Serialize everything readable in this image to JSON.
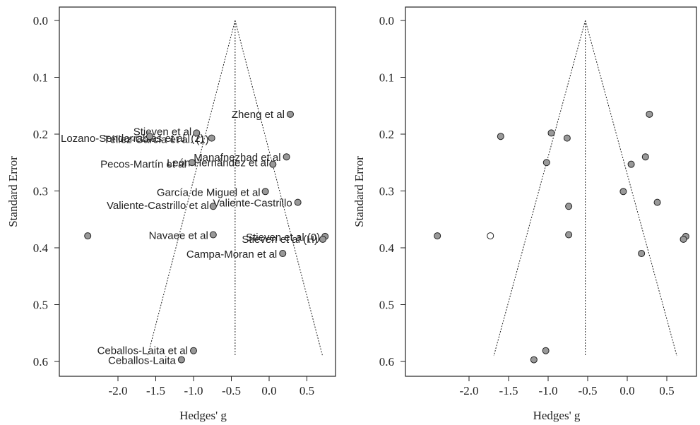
{
  "chart_data": [
    {
      "type": "scatter",
      "title": "",
      "xlabel": "Hedges' g",
      "ylabel": "Standard Error",
      "xlim": [
        -2.42,
        0.78
      ],
      "ylim": [
        0.0,
        0.6
      ],
      "y_reversed": true,
      "xticks": [
        "-2.0",
        "-1.5",
        "-1.0",
        "-0.5",
        "0.0",
        "0.5"
      ],
      "xtick_values": [
        -2.0,
        -1.5,
        -1.0,
        -0.5,
        0.0,
        0.5
      ],
      "yticks": [
        "0.0",
        "0.1",
        "0.2",
        "0.3",
        "0.4",
        "0.5",
        "0.6"
      ],
      "ytick_values": [
        0.0,
        0.1,
        0.2,
        0.3,
        0.4,
        0.5,
        0.6
      ],
      "summary_effect": -0.45,
      "funnel_se_max": 0.59,
      "point_color": "#999999",
      "points": [
        {
          "x": 0.28,
          "y": 0.165,
          "label": "Zheng et al"
        },
        {
          "x": -0.96,
          "y": 0.198,
          "label": "Stieven et al"
        },
        {
          "x": -0.76,
          "y": 0.207,
          "label": "Téllez-García et al. (1)"
        },
        {
          "x": -1.58,
          "y": 0.204,
          "label": "Lozano-Sendarrabias et al. (2)"
        },
        {
          "x": 0.23,
          "y": 0.24,
          "label": "Manafnezhad et al"
        },
        {
          "x": -1.02,
          "y": 0.25,
          "label": "Pecos-Martín et al"
        },
        {
          "x": 0.05,
          "y": 0.253,
          "label": "León-Hernández et al"
        },
        {
          "x": -0.05,
          "y": 0.301,
          "label": "García de Miguel et al"
        },
        {
          "x": 0.38,
          "y": 0.32,
          "label": "Valiente-Castrillo"
        },
        {
          "x": -0.74,
          "y": 0.327,
          "label": "Valiente-Castrillo et al"
        },
        {
          "x": -2.4,
          "y": 0.379,
          "label": ""
        },
        {
          "x": -0.74,
          "y": 0.377,
          "label": "Navaee et al"
        },
        {
          "x": 0.74,
          "y": 0.38,
          "label": "Stieven et al (0)"
        },
        {
          "x": 0.71,
          "y": 0.385,
          "label": "Stieven et al (H)"
        },
        {
          "x": 0.18,
          "y": 0.41,
          "label": "Campa-Moran et al"
        },
        {
          "x": -1.0,
          "y": 0.581,
          "label": "Ceballos-Laita et al"
        },
        {
          "x": -1.16,
          "y": 0.597,
          "label": "Ceballos-Laita"
        }
      ]
    },
    {
      "type": "scatter",
      "title": "",
      "xlabel": "Hedges' g",
      "ylabel": "Standard Error",
      "xlim": [
        -2.42,
        0.78
      ],
      "ylim": [
        0.0,
        0.6
      ],
      "y_reversed": true,
      "xticks": [
        "-2.0",
        "-1.5",
        "-1.0",
        "-0.5",
        "0.0",
        "0.5"
      ],
      "xtick_values": [
        -2.0,
        -1.5,
        -1.0,
        -0.5,
        0.0,
        0.5
      ],
      "yticks": [
        "0.0",
        "0.1",
        "0.2",
        "0.3",
        "0.4",
        "0.5",
        "0.6"
      ],
      "ytick_values": [
        0.0,
        0.1,
        0.2,
        0.3,
        0.4,
        0.5,
        0.6
      ],
      "summary_effect": -0.53,
      "funnel_se_max": 0.59,
      "point_color": "#999999",
      "imputed_color": "#ffffff",
      "points": [
        {
          "x": 0.28,
          "y": 0.165
        },
        {
          "x": -0.96,
          "y": 0.198
        },
        {
          "x": -0.76,
          "y": 0.207
        },
        {
          "x": -1.6,
          "y": 0.204
        },
        {
          "x": 0.23,
          "y": 0.24
        },
        {
          "x": -1.02,
          "y": 0.25
        },
        {
          "x": 0.05,
          "y": 0.253
        },
        {
          "x": -0.05,
          "y": 0.301
        },
        {
          "x": 0.38,
          "y": 0.32
        },
        {
          "x": -0.74,
          "y": 0.327
        },
        {
          "x": -2.4,
          "y": 0.379
        },
        {
          "x": -0.74,
          "y": 0.377
        },
        {
          "x": 0.74,
          "y": 0.38
        },
        {
          "x": 0.71,
          "y": 0.385
        },
        {
          "x": 0.18,
          "y": 0.41
        },
        {
          "x": -1.03,
          "y": 0.581
        },
        {
          "x": -1.18,
          "y": 0.597
        }
      ],
      "imputed_points": [
        {
          "x": -1.73,
          "y": 0.379
        }
      ]
    }
  ]
}
